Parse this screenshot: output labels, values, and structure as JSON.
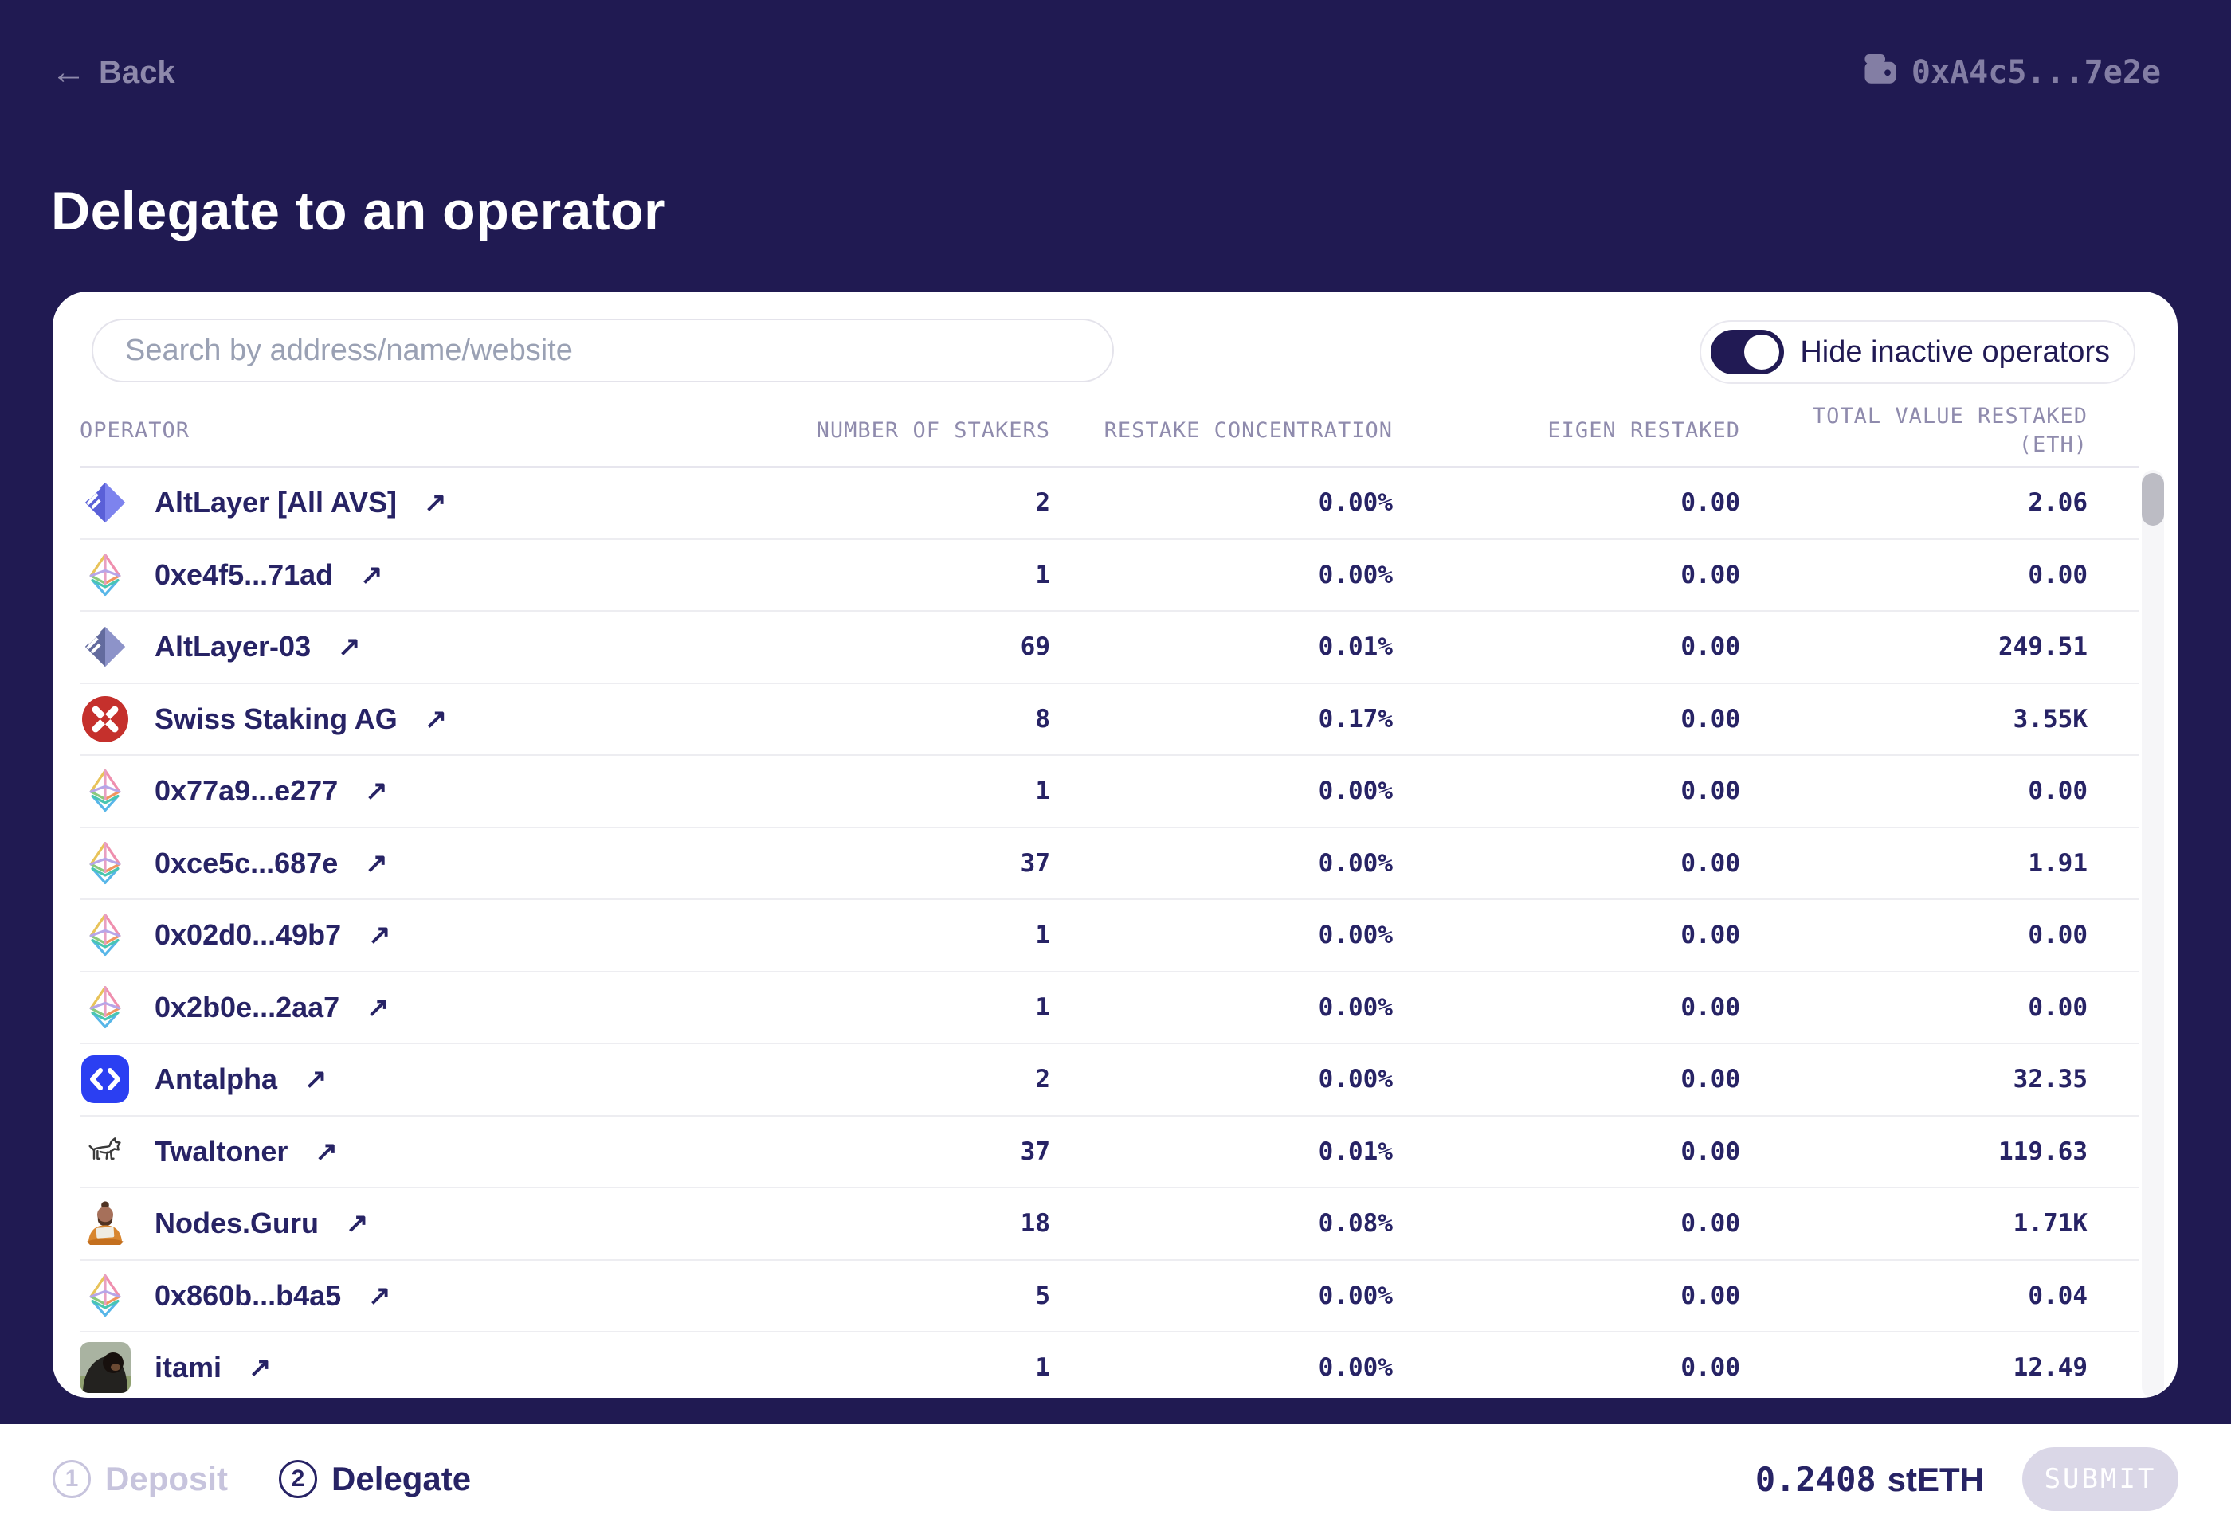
{
  "topbar": {
    "back_label": "Back",
    "wallet_address": "0xA4c5...7e2e"
  },
  "page_title": "Delegate to an operator",
  "icons": {
    "back_arrow": "←",
    "external_link": "↗"
  },
  "panel": {
    "search_placeholder": "Search by address/name/website",
    "toggle_label": "Hide inactive operators",
    "toggle_on": true,
    "columns": [
      {
        "label": "OPERATOR",
        "align": "left"
      },
      {
        "label": "NUMBER OF STAKERS"
      },
      {
        "label": "RESTAKE CONCENTRATION"
      },
      {
        "label": "EIGEN RESTAKED"
      },
      {
        "label": "TOTAL VALUE RESTAKED",
        "sublabel": "(ETH)"
      }
    ],
    "rows": [
      {
        "icon": "altlayer-icon",
        "name": "AltLayer [All AVS]",
        "stakers": "2",
        "concentration": "0.00%",
        "eigen": "0.00",
        "total": "2.06"
      },
      {
        "icon": "eth-icon",
        "name": "0xe4f5...71ad",
        "stakers": "1",
        "concentration": "0.00%",
        "eigen": "0.00",
        "total": "0.00"
      },
      {
        "icon": "altlayer-muted-icon",
        "name": "AltLayer-03",
        "stakers": "69",
        "concentration": "0.01%",
        "eigen": "0.00",
        "total": "249.51"
      },
      {
        "icon": "swiss-staking-icon",
        "name": "Swiss Staking AG",
        "stakers": "8",
        "concentration": "0.17%",
        "eigen": "0.00",
        "total": "3.55K"
      },
      {
        "icon": "eth-icon",
        "name": "0x77a9...e277",
        "stakers": "1",
        "concentration": "0.00%",
        "eigen": "0.00",
        "total": "0.00"
      },
      {
        "icon": "eth-icon",
        "name": "0xce5c...687e",
        "stakers": "37",
        "concentration": "0.00%",
        "eigen": "0.00",
        "total": "1.91"
      },
      {
        "icon": "eth-icon",
        "name": "0x02d0...49b7",
        "stakers": "1",
        "concentration": "0.00%",
        "eigen": "0.00",
        "total": "0.00"
      },
      {
        "icon": "eth-icon",
        "name": "0x2b0e...2aa7",
        "stakers": "1",
        "concentration": "0.00%",
        "eigen": "0.00",
        "total": "0.00"
      },
      {
        "icon": "antalpha-icon",
        "name": "Antalpha",
        "stakers": "2",
        "concentration": "0.00%",
        "eigen": "0.00",
        "total": "32.35"
      },
      {
        "icon": "twaltoner-icon",
        "name": "Twaltoner",
        "stakers": "37",
        "concentration": "0.01%",
        "eigen": "0.00",
        "total": "119.63"
      },
      {
        "icon": "nodes-guru-icon",
        "name": "Nodes.Guru",
        "stakers": "18",
        "concentration": "0.08%",
        "eigen": "0.00",
        "total": "1.71K"
      },
      {
        "icon": "eth-icon",
        "name": "0x860b...b4a5",
        "stakers": "5",
        "concentration": "0.00%",
        "eigen": "0.00",
        "total": "0.04"
      },
      {
        "icon": "itami-icon",
        "name": "itami",
        "stakers": "1",
        "concentration": "0.00%",
        "eigen": "0.00",
        "total": "12.49"
      }
    ]
  },
  "footer": {
    "steps": [
      {
        "number": "1",
        "label": "Deposit",
        "active": false
      },
      {
        "number": "2",
        "label": "Delegate",
        "active": true
      }
    ],
    "amount_value": "0.2408",
    "amount_symbol": "stETH",
    "submit_label": "SUBMIT"
  },
  "colors": {
    "background": "#201a52",
    "text_navy": "#272365",
    "muted_lavender": "#8e89ab",
    "divider": "#ededf1",
    "disabled": "#c7c4dd",
    "swiss_red": "#c5302c",
    "antalpha_blue": "#2b3ff2"
  }
}
